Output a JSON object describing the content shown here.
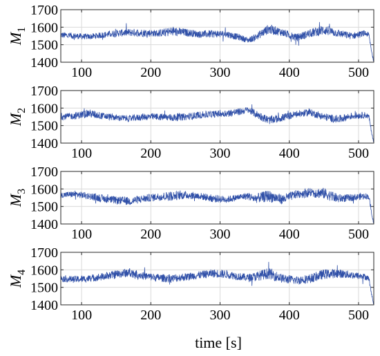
{
  "chart_data": {
    "type": "line",
    "xlabel": "time [s]",
    "xlim": [
      70,
      522
    ],
    "xticks": [
      100,
      200,
      300,
      400,
      500
    ],
    "grid": true,
    "line_color": "#3050a8",
    "panels": [
      {
        "ylabel": "M",
        "ylabel_sub": "1",
        "ylim": [
          1400,
          1700
        ],
        "yticks": [
          1400,
          1500,
          1600,
          1700
        ],
        "series": [
          {
            "x": [
              70,
              90,
              110,
              130,
              150,
              170,
              190,
              210,
              230,
              250,
              270,
              290,
              310,
              330,
              340,
              350,
              370,
              390,
              410,
              430,
              450,
              470,
              490,
              510,
              515,
              518,
              522
            ],
            "y": [
              1555,
              1550,
              1545,
              1555,
              1565,
              1570,
              1568,
              1565,
              1575,
              1570,
              1560,
              1562,
              1560,
              1540,
              1525,
              1540,
              1590,
              1570,
              1540,
              1565,
              1585,
              1565,
              1550,
              1565,
              1555,
              1480,
              1400
            ],
            "noise": [
              18,
              18,
              16,
              18,
              20,
              22,
              22,
              20,
              28,
              22,
              20,
              22,
              20,
              18,
              16,
              20,
              28,
              22,
              22,
              24,
              30,
              22,
              20,
              18,
              14,
              10,
              6
            ]
          }
        ]
      },
      {
        "ylabel": "M",
        "ylabel_sub": "2",
        "ylim": [
          1400,
          1700
        ],
        "yticks": [
          1400,
          1500,
          1600,
          1700
        ],
        "series": [
          {
            "x": [
              70,
              90,
              110,
              130,
              150,
              170,
              190,
              210,
              230,
              250,
              270,
              290,
              310,
              330,
              340,
              350,
              370,
              390,
              410,
              430,
              450,
              470,
              490,
              510,
              515,
              518,
              522
            ],
            "y": [
              1550,
              1555,
              1570,
              1555,
              1545,
              1540,
              1550,
              1550,
              1545,
              1550,
              1560,
              1565,
              1570,
              1580,
              1590,
              1570,
              1530,
              1545,
              1565,
              1575,
              1550,
              1535,
              1555,
              1560,
              1550,
              1480,
              1400
            ],
            "noise": [
              18,
              20,
              24,
              20,
              18,
              18,
              20,
              20,
              22,
              20,
              20,
              20,
              20,
              20,
              18,
              22,
              24,
              22,
              20,
              20,
              22,
              22,
              20,
              18,
              14,
              10,
              6
            ]
          }
        ]
      },
      {
        "ylabel": "M",
        "ylabel_sub": "3",
        "ylim": [
          1400,
          1700
        ],
        "yticks": [
          1400,
          1500,
          1600,
          1700
        ],
        "series": [
          {
            "x": [
              70,
              90,
              110,
              130,
              150,
              170,
              190,
              210,
              230,
              250,
              270,
              290,
              310,
              330,
              340,
              350,
              370,
              390,
              410,
              430,
              450,
              470,
              490,
              510,
              515,
              518,
              522
            ],
            "y": [
              1565,
              1570,
              1560,
              1545,
              1535,
              1530,
              1545,
              1555,
              1560,
              1565,
              1560,
              1545,
              1540,
              1555,
              1560,
              1545,
              1560,
              1540,
              1570,
              1580,
              1575,
              1545,
              1550,
              1560,
              1555,
              1480,
              1400
            ],
            "noise": [
              16,
              18,
              20,
              22,
              22,
              24,
              22,
              22,
              28,
              22,
              20,
              22,
              20,
              18,
              22,
              26,
              34,
              28,
              24,
              28,
              32,
              26,
              20,
              18,
              14,
              10,
              6
            ]
          }
        ]
      },
      {
        "ylabel": "M",
        "ylabel_sub": "4",
        "ylim": [
          1400,
          1700
        ],
        "yticks": [
          1400,
          1500,
          1600,
          1700
        ],
        "series": [
          {
            "x": [
              70,
              90,
              110,
              130,
              150,
              170,
              190,
              210,
              230,
              250,
              270,
              290,
              310,
              330,
              340,
              350,
              370,
              390,
              410,
              430,
              450,
              470,
              490,
              510,
              515,
              518,
              522
            ],
            "y": [
              1550,
              1545,
              1550,
              1560,
              1575,
              1585,
              1565,
              1555,
              1550,
              1560,
              1570,
              1580,
              1575,
              1560,
              1555,
              1560,
              1580,
              1550,
              1540,
              1550,
              1575,
              1580,
              1570,
              1560,
              1550,
              1480,
              1400
            ],
            "noise": [
              18,
              20,
              20,
              22,
              24,
              26,
              22,
              22,
              24,
              22,
              22,
              24,
              24,
              22,
              22,
              26,
              32,
              26,
              24,
              26,
              28,
              26,
              22,
              18,
              14,
              10,
              6
            ]
          }
        ]
      }
    ]
  }
}
